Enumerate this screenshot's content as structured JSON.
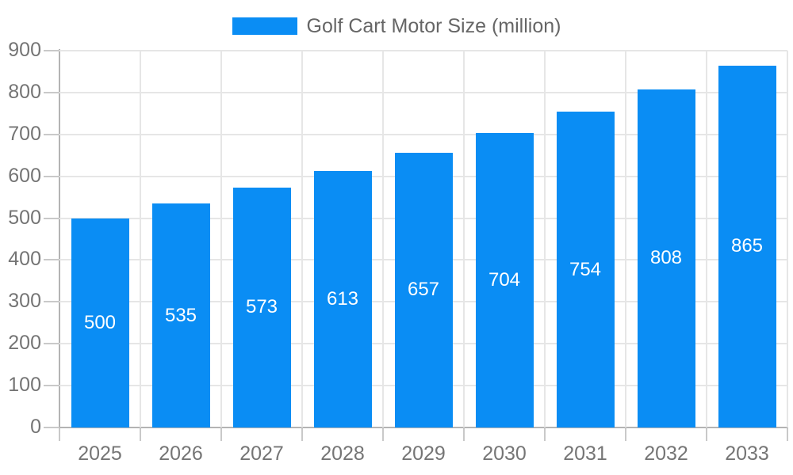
{
  "legend": {
    "label": "Golf Cart Motor Size (million)"
  },
  "chart_data": {
    "type": "bar",
    "title": "Golf Cart Motor Size (million)",
    "categories": [
      "2025",
      "2026",
      "2027",
      "2028",
      "2029",
      "2030",
      "2031",
      "2032",
      "2033"
    ],
    "values": [
      500,
      535,
      573,
      613,
      657,
      704,
      754,
      808,
      865
    ],
    "series": [
      {
        "name": "Golf Cart Motor Size (million)",
        "values": [
          500,
          535,
          573,
          613,
          657,
          704,
          754,
          808,
          865
        ]
      }
    ],
    "xlabel": "",
    "ylabel": "",
    "ylim": [
      0,
      900
    ],
    "ytick_interval": 100,
    "yticks": [
      0,
      100,
      200,
      300,
      400,
      500,
      600,
      700,
      800,
      900
    ],
    "grid": true,
    "legend_position": "top-center",
    "data_labels": "inside-center, white"
  },
  "colors": {
    "bar": "#0a8df4",
    "bar_label": "#ffffff",
    "grid": "#e6e6e6",
    "axis": "#b3b3b3",
    "tick": "#c9c9c9",
    "axis_label": "#757575",
    "legend_text": "#666666",
    "background": "#ffffff"
  }
}
